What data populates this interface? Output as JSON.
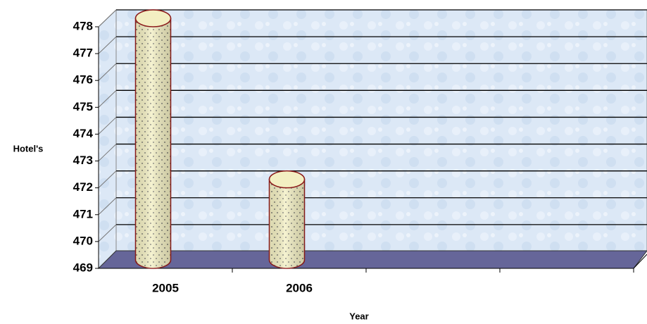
{
  "chart_data": {
    "type": "bar",
    "x_label": "Year",
    "y_label": "Hotel's",
    "categories": [
      "2005",
      "2006",
      null,
      null
    ],
    "values": [
      478,
      472,
      null,
      null
    ],
    "color": "#f3efc2",
    "ylim": [
      469,
      478
    ],
    "yticks": [
      469,
      470,
      471,
      472,
      473,
      474,
      475,
      476,
      477,
      478
    ],
    "grid": true
  }
}
